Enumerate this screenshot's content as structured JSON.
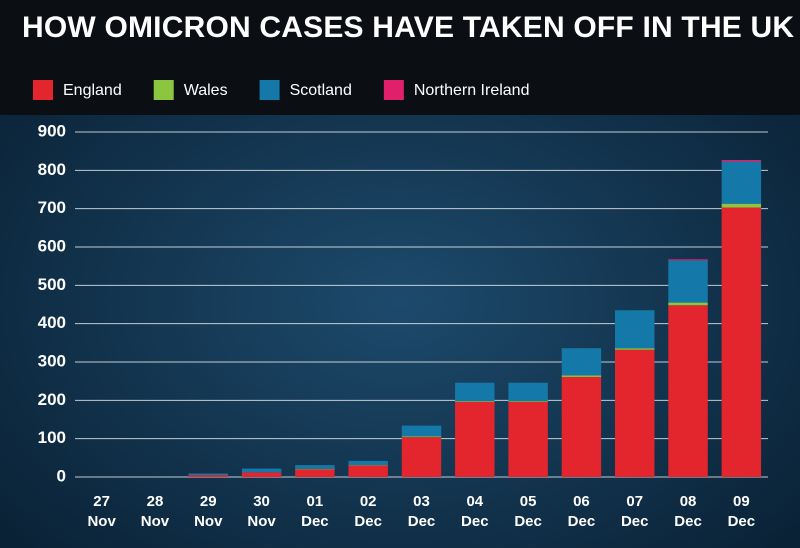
{
  "chart_data": {
    "type": "stacked-bar",
    "title": "HOW OMICRON CASES HAVE TAKEN OFF IN THE UK",
    "categories": [
      "27 Nov",
      "28 Nov",
      "29 Nov",
      "30 Nov",
      "01 Dec",
      "02 Dec",
      "03 Dec",
      "04 Dec",
      "05 Dec",
      "06 Dec",
      "07 Dec",
      "08 Dec",
      "09 Dec"
    ],
    "series": [
      {
        "name": "England",
        "color": "#e3262e",
        "values": [
          0,
          0,
          5,
          12,
          20,
          30,
          104,
          196,
          196,
          261,
          332,
          448,
          703
        ]
      },
      {
        "name": "Wales",
        "color": "#8cc63f",
        "values": [
          0,
          0,
          0,
          0,
          1,
          1,
          2,
          2,
          2,
          4,
          4,
          7,
          10
        ]
      },
      {
        "name": "Scotland",
        "color": "#1478a8",
        "values": [
          0,
          0,
          4,
          10,
          10,
          11,
          28,
          48,
          48,
          71,
          99,
          110,
          110
        ]
      },
      {
        "name": "Northern Ireland",
        "color": "#e0206a",
        "values": [
          0,
          0,
          0,
          0,
          0,
          0,
          0,
          0,
          0,
          0,
          0,
          3,
          4
        ]
      }
    ],
    "ylim": [
      0,
      900
    ],
    "yticks": [
      0,
      100,
      200,
      300,
      400,
      500,
      600,
      700,
      800,
      900
    ],
    "grid": true
  }
}
